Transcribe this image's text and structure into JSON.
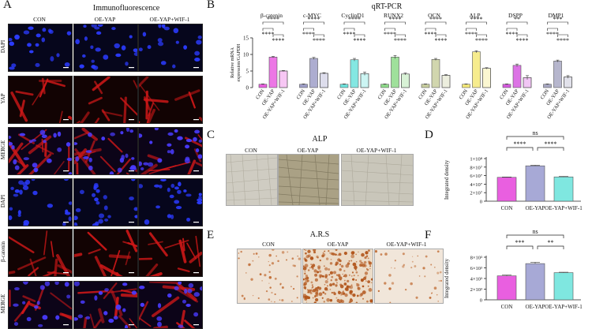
{
  "panel_a": {
    "label": "A",
    "title": "Immunofluorescence",
    "columns": [
      "CON",
      "OE-YAP",
      "OE-YAP+WIF-1"
    ],
    "rows": [
      "DAPI",
      "YAP",
      "MERGE",
      "DAPI",
      "β-catenin",
      "MERGE"
    ],
    "stain_colors": {
      "dapi": "#2b3bff",
      "yap": "#d01818",
      "merge": "#b02a8a"
    }
  },
  "panel_b": {
    "label": "B",
    "title": "qRT-PCR",
    "chart_data": {
      "type": "bar",
      "ylabel": "Relative mRNA expression/GAPDH",
      "ylim": [
        0,
        15
      ],
      "yticks": [
        0,
        5,
        10,
        15
      ],
      "categories": [
        "CON",
        "OE-YAP",
        "OE-YAP+WIF-1"
      ],
      "genes": [
        {
          "name": "β-catenin",
          "values": [
            1.0,
            9.2,
            5.0
          ],
          "errors": [
            0.1,
            0.2,
            0.15
          ],
          "color": "#e95fe0",
          "sig": [
            [
              "****",
              "****"
            ],
            [
              "****"
            ]
          ]
        },
        {
          "name": "c-MYC",
          "values": [
            1.0,
            8.8,
            4.3
          ],
          "errors": [
            0.1,
            0.3,
            0.2
          ],
          "color": "#9f9fc8",
          "sig": [
            [
              "****",
              "****"
            ],
            [
              "****"
            ]
          ]
        },
        {
          "name": "CyclinD1",
          "values": [
            1.0,
            8.4,
            4.2
          ],
          "errors": [
            0.1,
            0.4,
            0.5
          ],
          "color": "#6ee3dd",
          "sig": [
            [
              "****",
              "****"
            ],
            [
              "****"
            ]
          ]
        },
        {
          "name": "RUNX2",
          "values": [
            1.0,
            9.2,
            4.1
          ],
          "errors": [
            0.1,
            0.5,
            0.3
          ],
          "color": "#8edb8a",
          "sig": [
            [
              "****",
              "****"
            ],
            [
              "****"
            ]
          ]
        },
        {
          "name": "OCN",
          "values": [
            1.0,
            8.5,
            3.7
          ],
          "errors": [
            0.1,
            0.3,
            0.2
          ],
          "color": "#c9cfa0",
          "sig": [
            [
              "****",
              "****"
            ],
            [
              "****"
            ]
          ]
        },
        {
          "name": "ALP",
          "values": [
            1.0,
            10.8,
            5.8
          ],
          "errors": [
            0.1,
            0.3,
            0.2
          ],
          "color": "#f4e97a",
          "sig": [
            [
              "****",
              "****"
            ],
            [
              "****"
            ]
          ]
        },
        {
          "name": "DSPP",
          "values": [
            1.0,
            6.7,
            3.0
          ],
          "errors": [
            0.1,
            0.4,
            0.6
          ],
          "color": "#d65be0",
          "sig": [
            [
              "****",
              "**"
            ],
            [
              "****"
            ]
          ]
        },
        {
          "name": "DMP1",
          "values": [
            1.0,
            8.0,
            3.2
          ],
          "errors": [
            0.1,
            0.3,
            0.4
          ],
          "color": "#a9a9c4",
          "sig": [
            [
              "****",
              "***"
            ],
            [
              "****"
            ]
          ]
        }
      ]
    }
  },
  "panel_c": {
    "label": "C",
    "title": "ALP",
    "columns": [
      "CON",
      "OE-YAP",
      "OE-YAP+WIF-1"
    ]
  },
  "panel_d": {
    "label": "D",
    "chart_data": {
      "type": "bar",
      "ylabel": "Integrated density",
      "ylim": [
        0,
        100000000
      ],
      "yticks": [
        "0",
        "2×10⁷",
        "4×10⁷",
        "6×10⁷",
        "8×10⁷",
        "1×10⁸"
      ],
      "categories": [
        "CON",
        "OE-YAP",
        "OE-YAP+WIF-1"
      ],
      "values": [
        56000000,
        83000000,
        57000000
      ],
      "errors": [
        800000,
        1500000,
        1200000
      ],
      "colors": [
        "#e95fe0",
        "#a7a9d6",
        "#7fe7e0"
      ],
      "significance": [
        {
          "from": 0,
          "to": 1,
          "label": "****"
        },
        {
          "from": 1,
          "to": 2,
          "label": "****"
        },
        {
          "from": 0,
          "to": 2,
          "label": "ns"
        }
      ]
    }
  },
  "panel_e": {
    "label": "E",
    "title": "A.R.S",
    "columns": [
      "CON",
      "OE-YAP",
      "OE-YAP+WIF-1"
    ]
  },
  "panel_f": {
    "label": "F",
    "chart_data": {
      "type": "bar",
      "ylabel": "Integrated density",
      "ylim": [
        0,
        8000
      ],
      "yticks": [
        "0",
        "2×10³",
        "4×10³",
        "6×10³",
        "8×10³"
      ],
      "categories": [
        "CON",
        "OE-YAP",
        "OE-YAP+WIF-1"
      ],
      "values": [
        4500,
        6800,
        5100
      ],
      "errors": [
        150,
        250,
        80
      ],
      "colors": [
        "#e95fe0",
        "#a7a9d6",
        "#7fe7e0"
      ],
      "significance": [
        {
          "from": 0,
          "to": 1,
          "label": "***"
        },
        {
          "from": 1,
          "to": 2,
          "label": "**"
        },
        {
          "from": 0,
          "to": 2,
          "label": "ns"
        }
      ]
    }
  }
}
